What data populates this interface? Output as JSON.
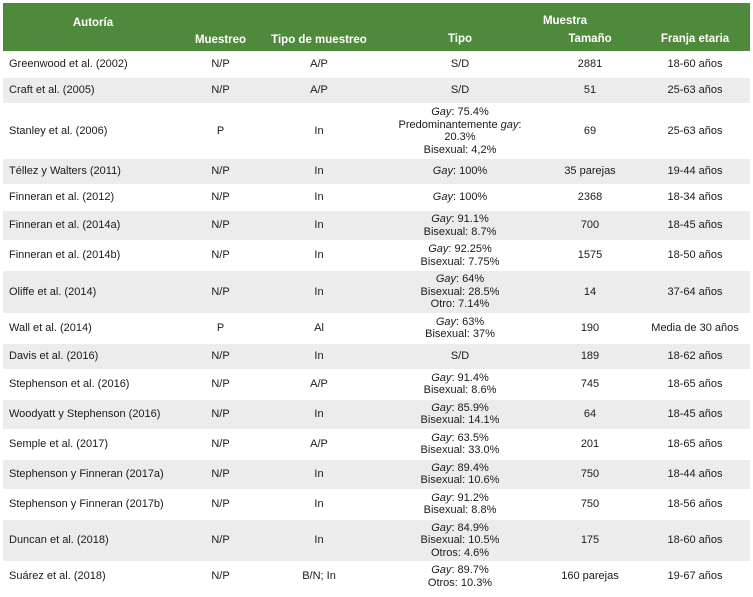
{
  "header": {
    "autoria": "Autoría",
    "muestreo": "Muestreo",
    "tipo_muestreo": "Tipo de muestreo",
    "muestra": "Muestra",
    "tipo": "Tipo",
    "tamano": "Tamaño",
    "franja": "Franja etaria"
  },
  "table": {
    "rows": [
      {
        "autoria": "Greenwood et al. (2002)",
        "muestreo": "N/P",
        "tipo_muestreo": "A/P",
        "tipo": [
          [
            "S/D"
          ]
        ],
        "tamano": "2881",
        "franja": "18-60 años"
      },
      {
        "autoria": "Craft et al. (2005)",
        "muestreo": "N/P",
        "tipo_muestreo": "A/P",
        "tipo": [
          [
            "S/D"
          ]
        ],
        "tamano": "51",
        "franja": "25-63 años"
      },
      {
        "autoria": "Stanley et al. (2006)",
        "muestreo": "P",
        "tipo_muestreo": "In",
        "tipo": [
          [
            {
              "text": "Gay",
              "italic": true
            },
            ": 75.4%"
          ],
          [
            "Predominantemente ",
            {
              "text": "gay",
              "italic": true
            },
            ": 20.3%"
          ],
          [
            "Bisexual: 4,2%"
          ]
        ],
        "tamano": "69",
        "franja": "25-63 años"
      },
      {
        "autoria": "Téllez y Walters (2011)",
        "muestreo": "N/P",
        "tipo_muestreo": "In",
        "tipo": [
          [
            {
              "text": "Gay",
              "italic": true
            },
            ": 100%"
          ]
        ],
        "tamano": "35 parejas",
        "franja": "19-44 años"
      },
      {
        "autoria": "Finneran et al. (2012)",
        "muestreo": "N/P",
        "tipo_muestreo": "In",
        "tipo": [
          [
            {
              "text": "Gay",
              "italic": true
            },
            ": 100%"
          ]
        ],
        "tamano": "2368",
        "franja": "18-34 años"
      },
      {
        "autoria": "Finneran et al. (2014a)",
        "muestreo": "N/P",
        "tipo_muestreo": "In",
        "tipo": [
          [
            {
              "text": "Gay",
              "italic": true
            },
            ": 91.1%"
          ],
          [
            "Bisexual: 8.7%"
          ]
        ],
        "tamano": "700",
        "franja": "18-45 años"
      },
      {
        "autoria": "Finneran et al. (2014b)",
        "muestreo": "N/P",
        "tipo_muestreo": "In",
        "tipo": [
          [
            {
              "text": "Gay",
              "italic": true
            },
            ": 92.25%"
          ],
          [
            "Bisexual: 7.75%"
          ]
        ],
        "tamano": "1575",
        "franja": "18-50 años"
      },
      {
        "autoria": "Oliffe et al. (2014)",
        "muestreo": "N/P",
        "tipo_muestreo": "In",
        "tipo": [
          [
            {
              "text": "Gay",
              "italic": true
            },
            ": 64%"
          ],
          [
            "Bisexual: 28.5%"
          ],
          [
            "Otro: 7.14%"
          ]
        ],
        "tamano": "14",
        "franja": "37-64 años"
      },
      {
        "autoria": "Wall et al. (2014)",
        "muestreo": "P",
        "tipo_muestreo": "Al",
        "tipo": [
          [
            {
              "text": "Gay",
              "italic": true
            },
            ": 63%"
          ],
          [
            "Bisexual: 37%"
          ]
        ],
        "tamano": "190",
        "franja": "Media de 30 años"
      },
      {
        "autoria": "Davis et al. (2016)",
        "muestreo": "N/P",
        "tipo_muestreo": "In",
        "tipo": [
          [
            "S/D"
          ]
        ],
        "tamano": "189",
        "franja": "18-62 años"
      },
      {
        "autoria": "Stephenson et al. (2016)",
        "muestreo": "N/P",
        "tipo_muestreo": "A/P",
        "tipo": [
          [
            {
              "text": "Gay",
              "italic": true
            },
            ": 91.4%"
          ],
          [
            "Bisexual: 8.6%"
          ]
        ],
        "tamano": "745",
        "franja": "18-65 años"
      },
      {
        "autoria": "Woodyatt y Stephenson (2016)",
        "muestreo": "N/P",
        "tipo_muestreo": "In",
        "tipo": [
          [
            {
              "text": "Gay",
              "italic": true
            },
            ": 85.9%"
          ],
          [
            "Bisexual: 14.1%"
          ]
        ],
        "tamano": "64",
        "franja": "18-45 años"
      },
      {
        "autoria": "Semple et al. (2017)",
        "muestreo": "N/P",
        "tipo_muestreo": "A/P",
        "tipo": [
          [
            {
              "text": "Gay",
              "italic": true
            },
            ": 63.5%"
          ],
          [
            "Bisexual: 33.0%"
          ]
        ],
        "tamano": "201",
        "franja": "18-65 años"
      },
      {
        "autoria": "Stephenson y Finneran (2017a)",
        "muestreo": "N/P",
        "tipo_muestreo": "In",
        "tipo": [
          [
            {
              "text": "Gay",
              "italic": true
            },
            ": 89.4%"
          ],
          [
            "Bisexual: 10.6%"
          ]
        ],
        "tamano": "750",
        "franja": "18-44 años"
      },
      {
        "autoria": "Stephenson y Finneran (2017b)",
        "muestreo": "N/P",
        "tipo_muestreo": "In",
        "tipo": [
          [
            {
              "text": "Gay",
              "italic": true
            },
            ": 91.2%"
          ],
          [
            "Bisexual: 8.8%"
          ]
        ],
        "tamano": "750",
        "franja": "18-56 años"
      },
      {
        "autoria": "Duncan et al. (2018)",
        "muestreo": "N/P",
        "tipo_muestreo": "In",
        "tipo": [
          [
            {
              "text": "Gay",
              "italic": true
            },
            ": 84.9%"
          ],
          [
            "Bisexual: 10.5%"
          ],
          [
            "Otros: 4.6%"
          ]
        ],
        "tamano": "175",
        "franja": "18-60 años"
      },
      {
        "autoria": "Suárez et al. (2018)",
        "muestreo": "N/P",
        "tipo_muestreo": "B/N; In",
        "tipo": [
          [
            {
              "text": "Gay",
              "italic": true
            },
            ": 89.7%"
          ],
          [
            "Otros: 10.3%"
          ]
        ],
        "tamano": "160 parejas",
        "franja": "19-67 años"
      }
    ]
  }
}
